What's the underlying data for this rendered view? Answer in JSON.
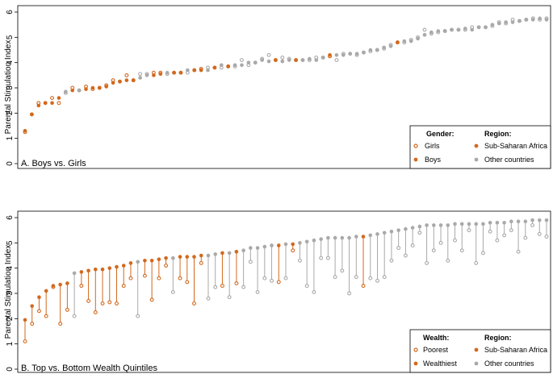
{
  "colors": {
    "ssa": "#d2691e",
    "other": "#a9a9a9"
  },
  "chart_data": [
    {
      "type": "scatter",
      "panel_label": "A. Boys vs. Girls",
      "ylabel": "Parental Stimulation Index",
      "ylim": [
        0,
        6
      ],
      "yticks": [
        0,
        1,
        2,
        3,
        4,
        5,
        6
      ],
      "legend": {
        "placement": "bottom-right",
        "group_title": "Gender:",
        "region_title": "Region:",
        "group_a": "Girls",
        "group_b": "Boys",
        "region_ssa": "Sub-Saharan Africa",
        "region_other": "Other countries"
      },
      "countries": [
        {
          "r": "s",
          "a": 1.25,
          "b": 1.3
        },
        {
          "r": "s",
          "a": 1.95,
          "b": 1.95
        },
        {
          "r": "s",
          "a": 2.4,
          "b": 2.3
        },
        {
          "r": "s",
          "a": 2.4,
          "b": 2.4
        },
        {
          "r": "s",
          "a": 2.6,
          "b": 2.4
        },
        {
          "r": "s",
          "a": 2.4,
          "b": 2.6
        },
        {
          "r": "o",
          "a": 2.8,
          "b": 2.85
        },
        {
          "r": "s",
          "a": 3.0,
          "b": 2.9
        },
        {
          "r": "o",
          "a": 2.9,
          "b": 2.9
        },
        {
          "r": "s",
          "a": 3.05,
          "b": 2.95
        },
        {
          "r": "s",
          "a": 2.95,
          "b": 3.0
        },
        {
          "r": "s",
          "a": 3.0,
          "b": 3.0
        },
        {
          "r": "s",
          "a": 3.1,
          "b": 3.05
        },
        {
          "r": "s",
          "a": 3.3,
          "b": 3.2
        },
        {
          "r": "s",
          "a": 3.25,
          "b": 3.25
        },
        {
          "r": "s",
          "a": 3.5,
          "b": 3.3
        },
        {
          "r": "s",
          "a": 3.3,
          "b": 3.3
        },
        {
          "r": "o",
          "a": 3.55,
          "b": 3.4
        },
        {
          "r": "o",
          "a": 3.55,
          "b": 3.5
        },
        {
          "r": "s",
          "a": 3.6,
          "b": 3.5
        },
        {
          "r": "s",
          "a": 3.6,
          "b": 3.55
        },
        {
          "r": "o",
          "a": 3.55,
          "b": 3.6
        },
        {
          "r": "s",
          "a": 3.6,
          "b": 3.6
        },
        {
          "r": "s",
          "a": 3.6,
          "b": 3.6
        },
        {
          "r": "o",
          "a": 3.6,
          "b": 3.7
        },
        {
          "r": "s",
          "a": 3.7,
          "b": 3.7
        },
        {
          "r": "s",
          "a": 3.75,
          "b": 3.7
        },
        {
          "r": "o",
          "a": 3.8,
          "b": 3.7
        },
        {
          "r": "s",
          "a": 3.8,
          "b": 3.8
        },
        {
          "r": "o",
          "a": 3.8,
          "b": 3.9
        },
        {
          "r": "s",
          "a": 3.85,
          "b": 3.85
        },
        {
          "r": "o",
          "a": 3.85,
          "b": 3.9
        },
        {
          "r": "o",
          "a": 4.1,
          "b": 3.9
        },
        {
          "r": "o",
          "a": 3.9,
          "b": 4.0
        },
        {
          "r": "o",
          "a": 4.0,
          "b": 4.0
        },
        {
          "r": "o",
          "a": 4.15,
          "b": 4.1
        },
        {
          "r": "o",
          "a": 4.3,
          "b": 4.05
        },
        {
          "r": "s",
          "a": 4.1,
          "b": 4.1
        },
        {
          "r": "o",
          "a": 4.2,
          "b": 4.05
        },
        {
          "r": "o",
          "a": 4.15,
          "b": 4.1
        },
        {
          "r": "s",
          "a": 4.1,
          "b": 4.1
        },
        {
          "r": "o",
          "a": 4.1,
          "b": 4.1
        },
        {
          "r": "o",
          "a": 4.1,
          "b": 4.15
        },
        {
          "r": "o",
          "a": 4.2,
          "b": 4.1
        },
        {
          "r": "o",
          "a": 4.2,
          "b": 4.2
        },
        {
          "r": "s",
          "a": 4.25,
          "b": 4.3
        },
        {
          "r": "o",
          "a": 4.1,
          "b": 4.3
        },
        {
          "r": "o",
          "a": 4.35,
          "b": 4.3
        },
        {
          "r": "o",
          "a": 4.35,
          "b": 4.35
        },
        {
          "r": "o",
          "a": 4.3,
          "b": 4.35
        },
        {
          "r": "o",
          "a": 4.4,
          "b": 4.4
        },
        {
          "r": "o",
          "a": 4.45,
          "b": 4.5
        },
        {
          "r": "o",
          "a": 4.5,
          "b": 4.5
        },
        {
          "r": "o",
          "a": 4.55,
          "b": 4.6
        },
        {
          "r": "o",
          "a": 4.7,
          "b": 4.65
        },
        {
          "r": "s",
          "a": 4.8,
          "b": 4.8
        },
        {
          "r": "o",
          "a": 4.8,
          "b": 4.85
        },
        {
          "r": "o",
          "a": 4.9,
          "b": 4.85
        },
        {
          "r": "o",
          "a": 5.0,
          "b": 4.95
        },
        {
          "r": "o",
          "a": 5.3,
          "b": 5.1
        },
        {
          "r": "o",
          "a": 5.15,
          "b": 5.2
        },
        {
          "r": "o",
          "a": 5.2,
          "b": 5.25
        },
        {
          "r": "o",
          "a": 5.25,
          "b": 5.25
        },
        {
          "r": "o",
          "a": 5.3,
          "b": 5.3
        },
        {
          "r": "o",
          "a": 5.3,
          "b": 5.3
        },
        {
          "r": "o",
          "a": 5.3,
          "b": 5.35
        },
        {
          "r": "o",
          "a": 5.4,
          "b": 5.3
        },
        {
          "r": "o",
          "a": 5.4,
          "b": 5.4
        },
        {
          "r": "o",
          "a": 5.4,
          "b": 5.4
        },
        {
          "r": "o",
          "a": 5.45,
          "b": 5.5
        },
        {
          "r": "o",
          "a": 5.6,
          "b": 5.55
        },
        {
          "r": "o",
          "a": 5.55,
          "b": 5.6
        },
        {
          "r": "o",
          "a": 5.7,
          "b": 5.6
        },
        {
          "r": "o",
          "a": 5.65,
          "b": 5.65
        },
        {
          "r": "o",
          "a": 5.7,
          "b": 5.7
        },
        {
          "r": "o",
          "a": 5.75,
          "b": 5.7
        },
        {
          "r": "o",
          "a": 5.7,
          "b": 5.75
        },
        {
          "r": "o",
          "a": 5.75,
          "b": 5.7
        }
      ]
    },
    {
      "type": "scatter",
      "panel_label": "B. Top vs. Bottom Wealth Quintiles",
      "ylabel": "Parental Stimulation Index",
      "ylim": [
        0,
        6
      ],
      "yticks": [
        0,
        1,
        2,
        3,
        4,
        5,
        6
      ],
      "legend": {
        "placement": "bottom-right",
        "group_title": "Wealth:",
        "region_title": "Region:",
        "group_a": "Poorest",
        "group_b": "Wealthiest",
        "region_ssa": "Sub-Saharan Africa",
        "region_other": "Other countries"
      },
      "countries": [
        {
          "r": "s",
          "a": 1.1,
          "b": 1.95
        },
        {
          "r": "s",
          "a": 1.8,
          "b": 2.5
        },
        {
          "r": "s",
          "a": 2.3,
          "b": 2.85
        },
        {
          "r": "s",
          "a": 2.1,
          "b": 3.1
        },
        {
          "r": "s",
          "a": 3.25,
          "b": 3.3
        },
        {
          "r": "s",
          "a": 1.8,
          "b": 3.35
        },
        {
          "r": "s",
          "a": 2.35,
          "b": 3.4
        },
        {
          "r": "o",
          "a": 2.1,
          "b": 3.8
        },
        {
          "r": "s",
          "a": 3.3,
          "b": 3.85
        },
        {
          "r": "s",
          "a": 2.7,
          "b": 3.9
        },
        {
          "r": "s",
          "a": 2.25,
          "b": 3.95
        },
        {
          "r": "s",
          "a": 2.6,
          "b": 3.95
        },
        {
          "r": "s",
          "a": 2.65,
          "b": 4.0
        },
        {
          "r": "s",
          "a": 2.6,
          "b": 4.05
        },
        {
          "r": "s",
          "a": 3.3,
          "b": 4.1
        },
        {
          "r": "s",
          "a": 3.6,
          "b": 4.2
        },
        {
          "r": "o",
          "a": 2.1,
          "b": 4.25
        },
        {
          "r": "s",
          "a": 3.7,
          "b": 4.3
        },
        {
          "r": "s",
          "a": 2.75,
          "b": 4.3
        },
        {
          "r": "s",
          "a": 3.6,
          "b": 4.35
        },
        {
          "r": "s",
          "a": 4.1,
          "b": 4.4
        },
        {
          "r": "o",
          "a": 3.05,
          "b": 4.4
        },
        {
          "r": "s",
          "a": 3.6,
          "b": 4.45
        },
        {
          "r": "s",
          "a": 3.45,
          "b": 4.45
        },
        {
          "r": "s",
          "a": 2.6,
          "b": 4.45
        },
        {
          "r": "s",
          "a": 4.2,
          "b": 4.5
        },
        {
          "r": "o",
          "a": 2.8,
          "b": 4.5
        },
        {
          "r": "o",
          "a": 3.25,
          "b": 4.55
        },
        {
          "r": "s",
          "a": 3.3,
          "b": 4.6
        },
        {
          "r": "o",
          "a": 2.85,
          "b": 4.6
        },
        {
          "r": "s",
          "a": 3.4,
          "b": 4.65
        },
        {
          "r": "o",
          "a": 3.25,
          "b": 4.7
        },
        {
          "r": "o",
          "a": 4.25,
          "b": 4.8
        },
        {
          "r": "o",
          "a": 3.05,
          "b": 4.8
        },
        {
          "r": "o",
          "a": 3.6,
          "b": 4.85
        },
        {
          "r": "o",
          "a": 3.5,
          "b": 4.9
        },
        {
          "r": "s",
          "a": 3.45,
          "b": 4.9
        },
        {
          "r": "o",
          "a": 3.6,
          "b": 4.95
        },
        {
          "r": "s",
          "a": 4.7,
          "b": 4.95
        },
        {
          "r": "o",
          "a": 4.3,
          "b": 5.0
        },
        {
          "r": "o",
          "a": 3.3,
          "b": 5.05
        },
        {
          "r": "o",
          "a": 3.05,
          "b": 5.1
        },
        {
          "r": "o",
          "a": 4.4,
          "b": 5.15
        },
        {
          "r": "o",
          "a": 4.4,
          "b": 5.2
        },
        {
          "r": "o",
          "a": 3.65,
          "b": 5.2
        },
        {
          "r": "o",
          "a": 3.9,
          "b": 5.2
        },
        {
          "r": "o",
          "a": 3.0,
          "b": 5.2
        },
        {
          "r": "o",
          "a": 3.65,
          "b": 5.25
        },
        {
          "r": "s",
          "a": 3.3,
          "b": 5.25
        },
        {
          "r": "o",
          "a": 3.6,
          "b": 5.3
        },
        {
          "r": "o",
          "a": 3.5,
          "b": 5.35
        },
        {
          "r": "o",
          "a": 3.65,
          "b": 5.4
        },
        {
          "r": "o",
          "a": 4.3,
          "b": 5.45
        },
        {
          "r": "o",
          "a": 4.8,
          "b": 5.5
        },
        {
          "r": "o",
          "a": 4.5,
          "b": 5.55
        },
        {
          "r": "o",
          "a": 4.9,
          "b": 5.6
        },
        {
          "r": "o",
          "a": 5.4,
          "b": 5.65
        },
        {
          "r": "o",
          "a": 4.2,
          "b": 5.7
        },
        {
          "r": "o",
          "a": 4.7,
          "b": 5.7
        },
        {
          "r": "o",
          "a": 5.0,
          "b": 5.7
        },
        {
          "r": "o",
          "a": 4.3,
          "b": 5.7
        },
        {
          "r": "o",
          "a": 5.1,
          "b": 5.75
        },
        {
          "r": "o",
          "a": 4.7,
          "b": 5.75
        },
        {
          "r": "o",
          "a": 5.5,
          "b": 5.75
        },
        {
          "r": "o",
          "a": 4.2,
          "b": 5.75
        },
        {
          "r": "o",
          "a": 4.6,
          "b": 5.75
        },
        {
          "r": "o",
          "a": 5.45,
          "b": 5.8
        },
        {
          "r": "o",
          "a": 5.1,
          "b": 5.8
        },
        {
          "r": "o",
          "a": 5.3,
          "b": 5.8
        },
        {
          "r": "o",
          "a": 5.5,
          "b": 5.85
        },
        {
          "r": "o",
          "a": 4.65,
          "b": 5.85
        },
        {
          "r": "o",
          "a": 5.2,
          "b": 5.85
        },
        {
          "r": "o",
          "a": 5.7,
          "b": 5.9
        },
        {
          "r": "o",
          "a": 5.35,
          "b": 5.9
        },
        {
          "r": "o",
          "a": 5.25,
          "b": 5.9
        }
      ]
    }
  ]
}
